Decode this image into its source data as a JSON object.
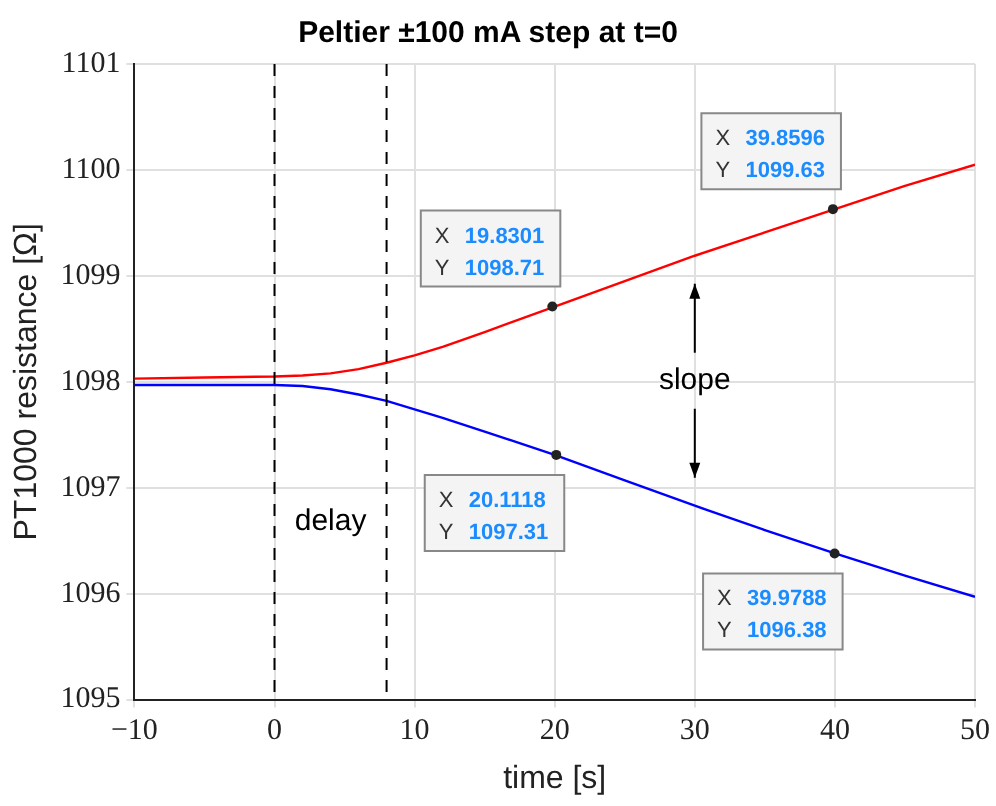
{
  "chart_data": {
    "type": "line",
    "title": "Peltier ±100 mA step at t=0",
    "xlabel": "time [s]",
    "ylabel": "PT1000 resistance [Ω]",
    "xlim": [
      -10,
      50
    ],
    "xticks": [
      -10,
      0,
      10,
      20,
      30,
      40,
      50
    ],
    "ylim": [
      1095,
      1101
    ],
    "yticks": [
      1095,
      1096,
      1097,
      1098,
      1099,
      1100,
      1101
    ],
    "grid": true,
    "legend": false,
    "marker": "none",
    "x": [
      -10,
      -5,
      0,
      2,
      4,
      6,
      8,
      10,
      12,
      15,
      20,
      25,
      30,
      35,
      40,
      45,
      50
    ],
    "series": [
      {
        "color": "#ff0000",
        "values": [
          1098.03,
          1098.04,
          1098.05,
          1098.06,
          1098.08,
          1098.12,
          1098.18,
          1098.25,
          1098.33,
          1098.47,
          1098.71,
          1098.95,
          1099.19,
          1099.41,
          1099.63,
          1099.85,
          1100.05
        ]
      },
      {
        "color": "#0000ff",
        "values": [
          1097.97,
          1097.97,
          1097.97,
          1097.96,
          1097.93,
          1097.88,
          1097.82,
          1097.74,
          1097.66,
          1097.53,
          1097.31,
          1097.07,
          1096.83,
          1096.6,
          1096.38,
          1096.17,
          1095.97
        ]
      }
    ],
    "ref_lines": [
      {
        "axis": "x",
        "value": 0,
        "line_style": "dashed",
        "color": "#000000"
      },
      {
        "axis": "x",
        "value": 8,
        "line_style": "dashed",
        "color": "#000000"
      }
    ],
    "annotations": [
      {
        "text": "X 19.8301\nY 1098.71",
        "x": 19.8301,
        "y": 1098.71
      },
      {
        "text": "X 39.8596\nY 1099.63",
        "x": 39.8596,
        "y": 1099.63
      },
      {
        "text": "X 20.1118\nY 1097.31",
        "x": 20.1118,
        "y": 1097.31
      },
      {
        "text": "X 39.9788\nY 1096.38",
        "x": 39.9788,
        "y": 1096.38
      },
      "delay",
      "slope"
    ]
  }
}
